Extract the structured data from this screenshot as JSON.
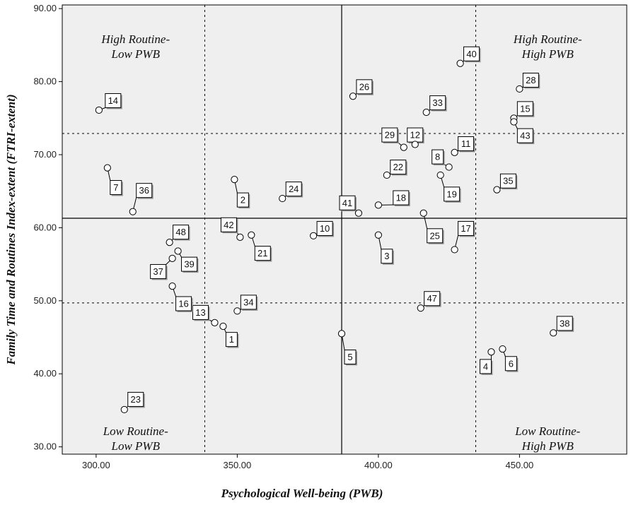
{
  "chart_data": {
    "type": "scatter",
    "xlabel": "Psychological Well-being (PWB)",
    "ylabel": "Family Time and Routines Index-extent (FTRI-extent)",
    "xlim": [
      288,
      488
    ],
    "ylim": [
      29,
      90.5
    ],
    "x_ticks": [
      "300.00",
      "350.00",
      "400.00",
      "450.00"
    ],
    "x_tick_values": [
      300,
      350,
      400,
      450
    ],
    "y_ticks": [
      "30.00",
      "40.00",
      "50.00",
      "60.00",
      "70.00",
      "80.00",
      "90.00"
    ],
    "y_tick_values": [
      30,
      40,
      50,
      60,
      70,
      80,
      90
    ],
    "grid": false,
    "reference_lines": {
      "vertical_solid": 387,
      "horizontal_solid": 61.3,
      "vertical_dotted": [
        338.5,
        434.5
      ],
      "horizontal_dotted": [
        49.7,
        72.9
      ]
    },
    "quadrant_labels": [
      {
        "line1": "High Routine-",
        "line2": "Low PWB",
        "x": 314,
        "y": 85.3
      },
      {
        "line1": "High Routine-",
        "line2": "High PWB",
        "x": 460,
        "y": 85.3
      },
      {
        "line1": "Low Routine-",
        "line2": "Low PWB",
        "x": 314,
        "y": 31.6
      },
      {
        "line1": "Low Routine-",
        "line2": "High PWB",
        "x": 460,
        "y": 31.6
      }
    ],
    "points": [
      {
        "label": "1",
        "x": 345,
        "y": 46.5,
        "lx": 348,
        "ly": 44.7
      },
      {
        "label": "2",
        "x": 349,
        "y": 66.6,
        "lx": 352,
        "ly": 63.8
      },
      {
        "label": "3",
        "x": 400,
        "y": 59.0,
        "lx": 403,
        "ly": 56.1
      },
      {
        "label": "4",
        "x": 440,
        "y": 43.0,
        "lx": 438,
        "ly": 41.0
      },
      {
        "label": "5",
        "x": 387,
        "y": 45.5,
        "lx": 390,
        "ly": 42.3
      },
      {
        "label": "6",
        "x": 444,
        "y": 43.4,
        "lx": 447,
        "ly": 41.4
      },
      {
        "label": "7",
        "x": 304,
        "y": 68.2,
        "lx": 307,
        "ly": 65.5
      },
      {
        "label": "8",
        "x": 425,
        "y": 68.3,
        "lx": 421,
        "ly": 69.7
      },
      {
        "label": "10",
        "x": 377,
        "y": 58.9,
        "lx": 381,
        "ly": 59.9
      },
      {
        "label": "11",
        "x": 427,
        "y": 70.3,
        "lx": 431,
        "ly": 71.5
      },
      {
        "label": "12",
        "x": 413,
        "y": 71.4,
        "lx": 413,
        "ly": 72.7
      },
      {
        "label": "13",
        "x": 342,
        "y": 47.0,
        "lx": 337,
        "ly": 48.4
      },
      {
        "label": "14",
        "x": 301,
        "y": 76.1,
        "lx": 306,
        "ly": 77.4
      },
      {
        "label": "15",
        "x": 448,
        "y": 75.0,
        "lx": 452,
        "ly": 76.3
      },
      {
        "label": "16",
        "x": 327,
        "y": 52.0,
        "lx": 331,
        "ly": 49.6
      },
      {
        "label": "17",
        "x": 427,
        "y": 57.0,
        "lx": 431,
        "ly": 59.9
      },
      {
        "label": "18",
        "x": 400,
        "y": 63.1,
        "lx": 408,
        "ly": 64.1
      },
      {
        "label": "19",
        "x": 422,
        "y": 67.2,
        "lx": 426,
        "ly": 64.6
      },
      {
        "label": "21",
        "x": 355,
        "y": 59.0,
        "lx": 359,
        "ly": 56.5
      },
      {
        "label": "22",
        "x": 403,
        "y": 67.2,
        "lx": 407,
        "ly": 68.3
      },
      {
        "label": "23",
        "x": 310,
        "y": 35.1,
        "lx": 314,
        "ly": 36.5
      },
      {
        "label": "24",
        "x": 366,
        "y": 64.0,
        "lx": 370,
        "ly": 65.3
      },
      {
        "label": "25",
        "x": 416,
        "y": 62.0,
        "lx": 420,
        "ly": 58.9
      },
      {
        "label": "26",
        "x": 391,
        "y": 78.0,
        "lx": 395,
        "ly": 79.3
      },
      {
        "label": "28",
        "x": 450,
        "y": 79.0,
        "lx": 454,
        "ly": 80.2
      },
      {
        "label": "29",
        "x": 409,
        "y": 71.0,
        "lx": 404,
        "ly": 72.7
      },
      {
        "label": "33",
        "x": 417,
        "y": 75.8,
        "lx": 421,
        "ly": 77.1
      },
      {
        "label": "34",
        "x": 350,
        "y": 48.6,
        "lx": 354,
        "ly": 49.8
      },
      {
        "label": "35",
        "x": 442,
        "y": 65.2,
        "lx": 446,
        "ly": 66.4
      },
      {
        "label": "36",
        "x": 313,
        "y": 62.2,
        "lx": 317,
        "ly": 65.1
      },
      {
        "label": "37",
        "x": 327,
        "y": 55.8,
        "lx": 322,
        "ly": 54.0
      },
      {
        "label": "38",
        "x": 462,
        "y": 45.6,
        "lx": 466,
        "ly": 46.9
      },
      {
        "label": "39",
        "x": 329,
        "y": 56.8,
        "lx": 333,
        "ly": 55.0
      },
      {
        "label": "40",
        "x": 429,
        "y": 82.5,
        "lx": 433,
        "ly": 83.8
      },
      {
        "label": "41",
        "x": 393,
        "y": 62.0,
        "lx": 389,
        "ly": 63.4
      },
      {
        "label": "42",
        "x": 351,
        "y": 58.7,
        "lx": 347,
        "ly": 60.4
      },
      {
        "label": "43",
        "x": 448,
        "y": 74.5,
        "lx": 452,
        "ly": 72.6
      },
      {
        "label": "47",
        "x": 415,
        "y": 49.0,
        "lx": 419,
        "ly": 50.3
      },
      {
        "label": "48",
        "x": 326,
        "y": 58.0,
        "lx": 330,
        "ly": 59.4
      }
    ]
  }
}
